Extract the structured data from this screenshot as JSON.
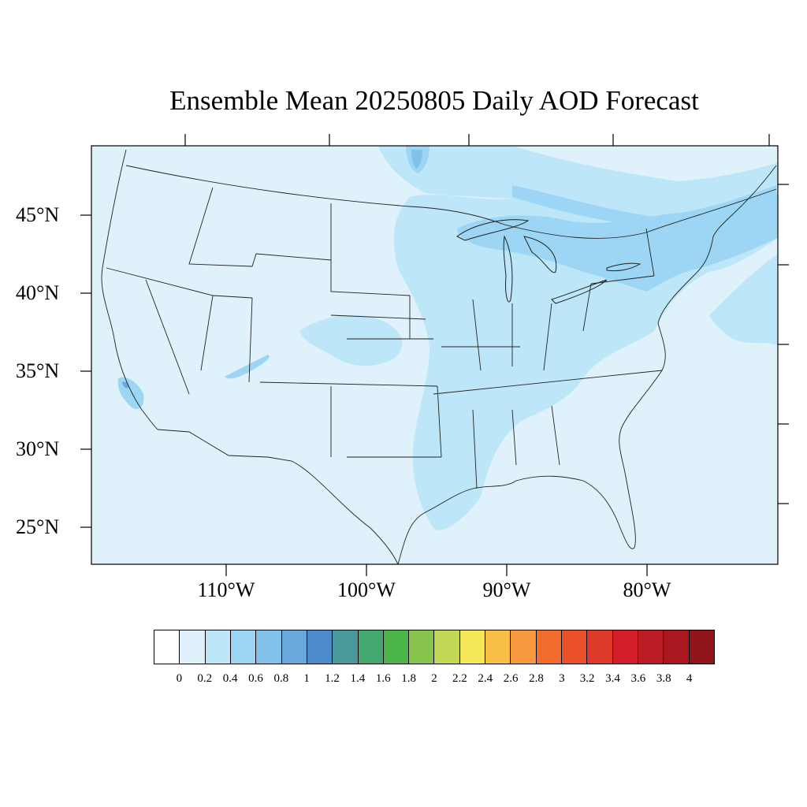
{
  "title": "Ensemble Mean 20250805 Daily AOD Forecast",
  "latitude_labels": [
    "45°N",
    "40°N",
    "35°N",
    "30°N",
    "25°N"
  ],
  "longitude_labels": [
    "110°W",
    "100°W",
    "90°W",
    "80°W"
  ],
  "colorbar": {
    "labels": [
      "0",
      "0.2",
      "0.4",
      "0.6",
      "0.8",
      "1",
      "1.2",
      "1.4",
      "1.6",
      "1.8",
      "2",
      "2.2",
      "2.4",
      "2.6",
      "2.8",
      "3",
      "3.2",
      "3.4",
      "3.6",
      "3.8",
      "4"
    ],
    "colors": [
      "#ffffff",
      "#dff2fb",
      "#bde6f8",
      "#9dd6f4",
      "#82c1e9",
      "#6aa7dc",
      "#4b8bca",
      "#4a9a9c",
      "#45a86f",
      "#4bb54a",
      "#87c54f",
      "#c3d756",
      "#f6e85a",
      "#f8be48",
      "#f6993e",
      "#f26c2b",
      "#ea5129",
      "#de3829",
      "#d31f2a",
      "#bb1b23",
      "#a8181e",
      "#8f1519"
    ]
  },
  "map": {
    "background_color": "#dff2fb",
    "level_0_4_color": "#bde6f8",
    "level_0_6_color": "#9dd6f4",
    "level_0_8_color": "#82c1e9"
  }
}
